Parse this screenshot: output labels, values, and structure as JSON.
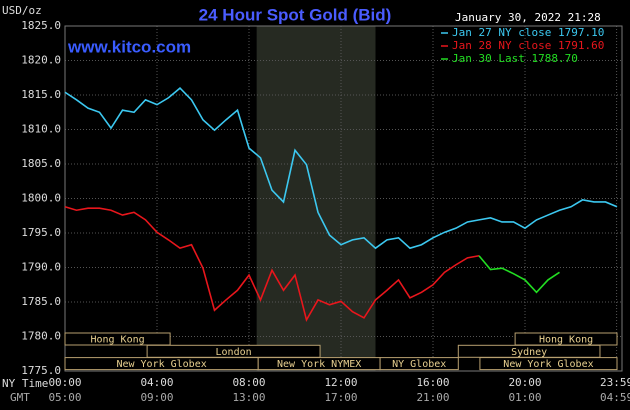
{
  "chart_data": {
    "type": "line",
    "title": "24 Hour Spot Gold (Bid)",
    "unit_label": "USD/oz",
    "timestamp": "January 30, 2022 21:28",
    "watermark": "www.kitco.com",
    "x_row_labels": [
      "NY Time",
      "GMT"
    ],
    "background": "#000000",
    "grid": true,
    "xlim": [
      0,
      24
    ],
    "ylim": [
      1775,
      1825
    ],
    "yticks": [
      {
        "value": 1775,
        "label": "1775.0"
      },
      {
        "value": 1780,
        "label": "1780.0"
      },
      {
        "value": 1785,
        "label": "1785.0"
      },
      {
        "value": 1790,
        "label": "1790.0"
      },
      {
        "value": 1795,
        "label": "1795.0"
      },
      {
        "value": 1800,
        "label": "1800.0"
      },
      {
        "value": 1805,
        "label": "1805.0"
      },
      {
        "value": 1810,
        "label": "1810.0"
      },
      {
        "value": 1815,
        "label": "1815.0"
      },
      {
        "value": 1820,
        "label": "1820.0"
      },
      {
        "value": 1825,
        "label": "1825.0"
      }
    ],
    "xticks": [
      {
        "value": 0,
        "label": "00:00"
      },
      {
        "value": 4,
        "label": "04:00"
      },
      {
        "value": 8,
        "label": "08:00"
      },
      {
        "value": 12,
        "label": "12:00"
      },
      {
        "value": 16,
        "label": "16:00"
      },
      {
        "value": 20,
        "label": "20:00"
      },
      {
        "value": 23.983,
        "label": "23:59"
      }
    ],
    "x2ticks": [
      {
        "value": 0,
        "label": "05:00"
      },
      {
        "value": 4,
        "label": "09:00"
      },
      {
        "value": 8,
        "label": "13:00"
      },
      {
        "value": 12,
        "label": "17:00"
      },
      {
        "value": 16,
        "label": "21:00"
      },
      {
        "value": 20,
        "label": "01:00"
      },
      {
        "value": 23.983,
        "label": "04:59"
      }
    ],
    "highlight_xrange": [
      8.333,
      13.5
    ],
    "sessions": [
      {
        "label": "Hong Kong",
        "row": 0,
        "start": 0,
        "end": 4.57
      },
      {
        "label": "Hong Kong",
        "row": 0,
        "start": 19.57,
        "end": 24
      },
      {
        "label": "London",
        "row": 1,
        "start": 3.57,
        "end": 11.09
      },
      {
        "label": "Sydney",
        "row": 1,
        "start": 17.1,
        "end": 23.26
      },
      {
        "label": "New York Globex",
        "row": 2,
        "start": 0,
        "end": 8.4
      },
      {
        "label": "New York NYMEX",
        "row": 2,
        "start": 8.4,
        "end": 13.7
      },
      {
        "label": "NY Globex",
        "row": 2,
        "start": 13.7,
        "end": 17.1
      },
      {
        "label": "New York Globex",
        "row": 2,
        "start": 18.04,
        "end": 24
      }
    ],
    "x": [
      0,
      0.5,
      1,
      1.5,
      2,
      2.5,
      3,
      3.5,
      4,
      4.5,
      5,
      5.5,
      6,
      6.5,
      7,
      7.5,
      8,
      8.5,
      9,
      9.5,
      10,
      10.5,
      11,
      11.5,
      12,
      12.5,
      13,
      13.5,
      14,
      14.5,
      15,
      15.5,
      16,
      16.5,
      17,
      17.5,
      18,
      18.5,
      19,
      19.5,
      20,
      20.5,
      21,
      21.5,
      22,
      22.5,
      23,
      23.5,
      24
    ],
    "series": [
      {
        "name": "Jan 27 NY close 1797.10",
        "color": "#3cc8f0",
        "values": [
          1815.4,
          1814.3,
          1813.1,
          1812.5,
          1810.2,
          1812.8,
          1812.5,
          1814.3,
          1813.6,
          1814.6,
          1816.0,
          1814.3,
          1811.4,
          1809.9,
          1811.4,
          1812.8,
          1807.3,
          1805.9,
          1801.2,
          1799.5,
          1807.0,
          1804.9,
          1798.0,
          1794.7,
          1793.3,
          1794.0,
          1794.3,
          1792.8,
          1794.0,
          1794.3,
          1792.8,
          1793.3,
          1794.3,
          1795.1,
          1795.7,
          1796.6,
          1796.9,
          1797.2,
          1796.6,
          1796.6,
          1795.7,
          1796.9,
          1797.6,
          1798.3,
          1798.8,
          1799.8,
          1799.5,
          1799.5,
          1798.8
        ]
      },
      {
        "name": "Jan 28 NY close 1791.60",
        "color": "#e8161c",
        "values": [
          1798.8,
          1798.3,
          1798.6,
          1798.6,
          1798.3,
          1797.6,
          1798.0,
          1796.9,
          1795.1,
          1794.0,
          1792.8,
          1793.3,
          1789.9,
          1783.8,
          1785.3,
          1786.7,
          1788.9,
          1785.3,
          1789.6,
          1786.7,
          1788.9,
          1782.4,
          1785.3,
          1784.6,
          1785.1,
          1783.6,
          1782.7,
          1785.3,
          1786.7,
          1788.2,
          1785.6,
          1786.4,
          1787.5,
          1789.3,
          1790.4,
          1791.4,
          1791.7,
          null,
          null,
          null,
          null,
          null,
          null,
          null,
          null,
          null,
          null,
          null,
          null
        ]
      },
      {
        "name": "Jan 30 Last 1788.70",
        "color": "#22dd22",
        "values": [
          null,
          null,
          null,
          null,
          null,
          null,
          null,
          null,
          null,
          null,
          null,
          null,
          null,
          null,
          null,
          null,
          null,
          null,
          null,
          null,
          null,
          null,
          null,
          null,
          null,
          null,
          null,
          null,
          null,
          null,
          null,
          null,
          null,
          null,
          null,
          null,
          1791.7,
          1789.7,
          1789.9,
          1789.1,
          1788.2,
          1786.4,
          1788.2,
          1789.3,
          null,
          null,
          null,
          null,
          null
        ]
      }
    ]
  }
}
